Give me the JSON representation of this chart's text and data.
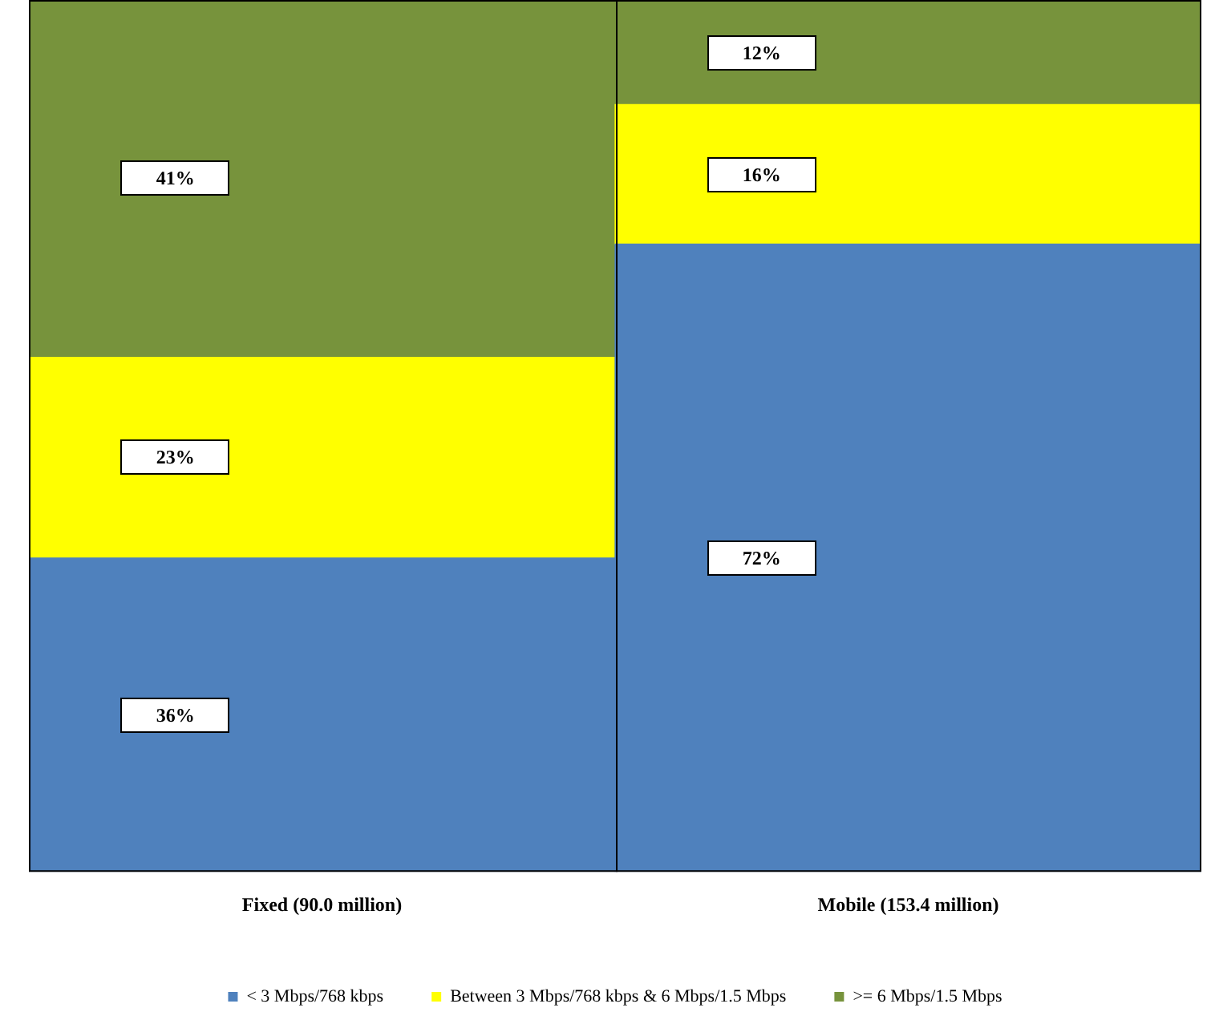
{
  "chart_data": {
    "type": "bar",
    "stacked": true,
    "categories": [
      "Fixed (90.0 million)",
      "Mobile (153.4 million)"
    ],
    "series": [
      {
        "name": "< 3 Mbps/768 kbps",
        "color": "#4f81bd",
        "values": [
          36,
          72
        ],
        "value_labels": [
          "36%",
          "72%"
        ]
      },
      {
        "name": "Between 3 Mbps/768 kbps & 6 Mbps/1.5 Mbps",
        "color": "#ffff00",
        "values": [
          23,
          16
        ],
        "value_labels": [
          "23%",
          "16%"
        ]
      },
      {
        "name": ">= 6 Mbps/1.5 Mbps",
        "color": "#77933c",
        "values": [
          41,
          12
        ],
        "value_labels": [
          "41%",
          "12%"
        ]
      }
    ],
    "legend": "bottom",
    "grid": false
  }
}
